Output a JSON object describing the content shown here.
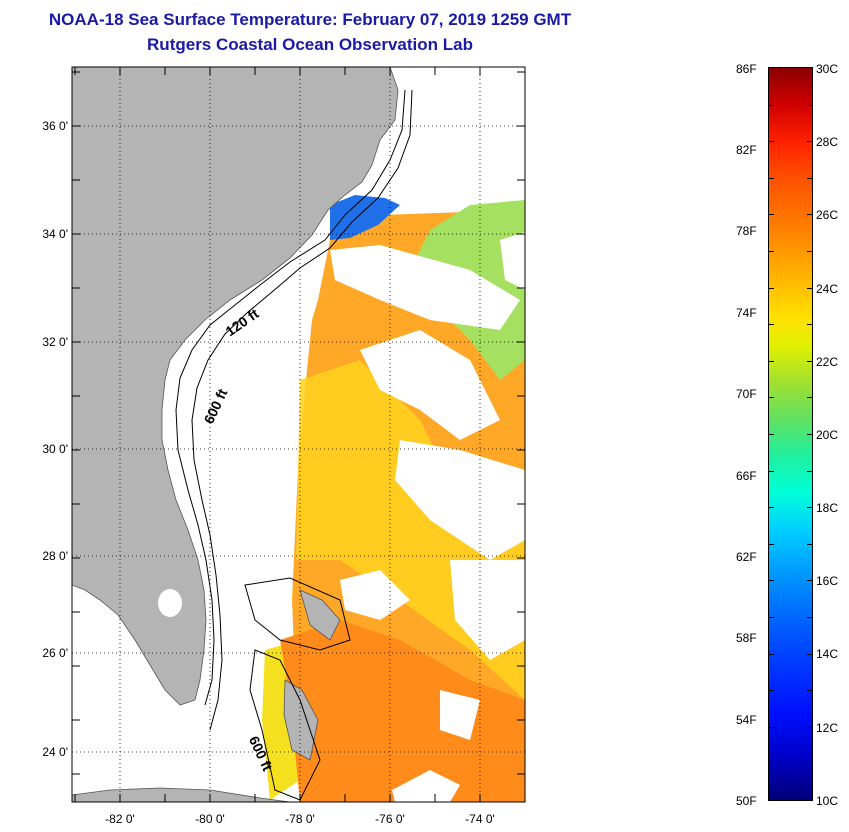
{
  "header": {
    "title_line1": "NOAA-18 Sea Surface Temperature:  February 07, 2019 1259 GMT",
    "title_line2": "Rutgers Coastal Ocean Observation Lab"
  },
  "map": {
    "lat_labels": [
      "36 0'",
      "34 0'",
      "32 0'",
      "30 0'",
      "28 0'",
      "26 0'",
      "24 0'"
    ],
    "lon_labels": [
      "-82 0'",
      "-80 0'",
      "-78 0'",
      "-76 0'",
      "-74 0'"
    ],
    "contour_labels": {
      "c120": "120 ft",
      "c600_north": "600 ft",
      "c600_south": "600 ft"
    },
    "colors": {
      "land": "#b4b4b4",
      "cloud": "#ffffff",
      "warm_water": "#ffa726",
      "cool_water": "#a6e060"
    }
  },
  "colorbar": {
    "fahrenheit": [
      "86F",
      "82F",
      "78F",
      "74F",
      "70F",
      "66F",
      "62F",
      "58F",
      "54F",
      "50F"
    ],
    "celsius": [
      "30C",
      "28C",
      "26C",
      "24C",
      "22C",
      "20C",
      "18C",
      "16C",
      "14C",
      "12C",
      "10C"
    ]
  }
}
